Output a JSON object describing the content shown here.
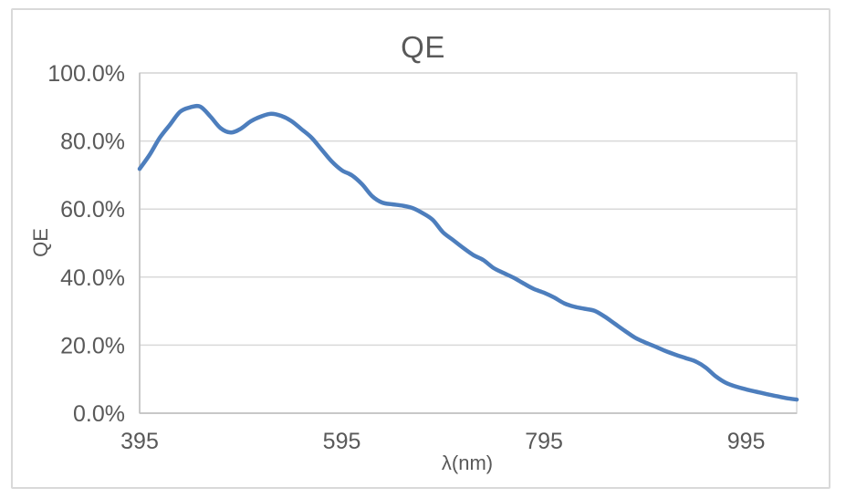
{
  "chart_data": {
    "type": "line",
    "title": "QE",
    "xlabel": "λ(nm)",
    "ylabel": "QE",
    "legend": "none",
    "grid": "horizontal",
    "smooth": true,
    "x_range": [
      395,
      1045
    ],
    "y_range_percent": [
      0,
      100
    ],
    "x_ticks": [
      {
        "value": 395,
        "label": "395"
      },
      {
        "value": 595,
        "label": "595"
      },
      {
        "value": 795,
        "label": "795"
      },
      {
        "value": 995,
        "label": "995"
      }
    ],
    "y_ticks": [
      {
        "value": 100,
        "label": "100.0%"
      },
      {
        "value": 80,
        "label": "80.0%"
      },
      {
        "value": 60,
        "label": "60.0%"
      },
      {
        "value": 40,
        "label": "40.0%"
      },
      {
        "value": 20,
        "label": "20.0%"
      },
      {
        "value": 0,
        "label": "0.0%"
      }
    ],
    "series": [
      {
        "name": "QE",
        "color": "#4d7ebd",
        "x": [
          395,
          405,
          415,
          425,
          435,
          445,
          455,
          465,
          475,
          485,
          495,
          505,
          515,
          525,
          535,
          545,
          555,
          565,
          575,
          585,
          595,
          605,
          615,
          625,
          635,
          645,
          655,
          665,
          675,
          685,
          695,
          705,
          715,
          725,
          735,
          745,
          755,
          765,
          775,
          785,
          795,
          805,
          815,
          825,
          835,
          845,
          855,
          865,
          875,
          885,
          895,
          905,
          915,
          925,
          935,
          945,
          955,
          965,
          975,
          985,
          995,
          1005,
          1015,
          1025,
          1035,
          1045
        ],
        "values_percent": [
          71.8,
          76.0,
          81.0,
          84.8,
          88.6,
          89.9,
          90.1,
          87.2,
          83.8,
          82.5,
          83.6,
          85.8,
          87.2,
          88.0,
          87.4,
          85.9,
          83.5,
          81.0,
          77.5,
          74.0,
          71.4,
          69.9,
          67.3,
          63.8,
          61.9,
          61.4,
          61.0,
          60.3,
          58.8,
          56.8,
          53.2,
          50.9,
          48.6,
          46.5,
          45.0,
          42.7,
          41.2,
          39.8,
          38.1,
          36.5,
          35.4,
          34.0,
          32.3,
          31.3,
          30.7,
          30.1,
          28.4,
          26.3,
          24.2,
          22.2,
          20.8,
          19.6,
          18.3,
          17.2,
          16.2,
          15.2,
          13.4,
          10.8,
          8.9,
          7.8,
          7.0,
          6.3,
          5.6,
          5.0,
          4.4,
          4.0
        ]
      }
    ]
  },
  "colors": {
    "background": "#ffffff",
    "frame_border": "#d9d9d9",
    "gridline": "#d9d9d9",
    "plot_border": "#d9d9d9",
    "axis_line": "#bfbfbf",
    "text": "#595959",
    "series_line": "#4d7ebd"
  }
}
